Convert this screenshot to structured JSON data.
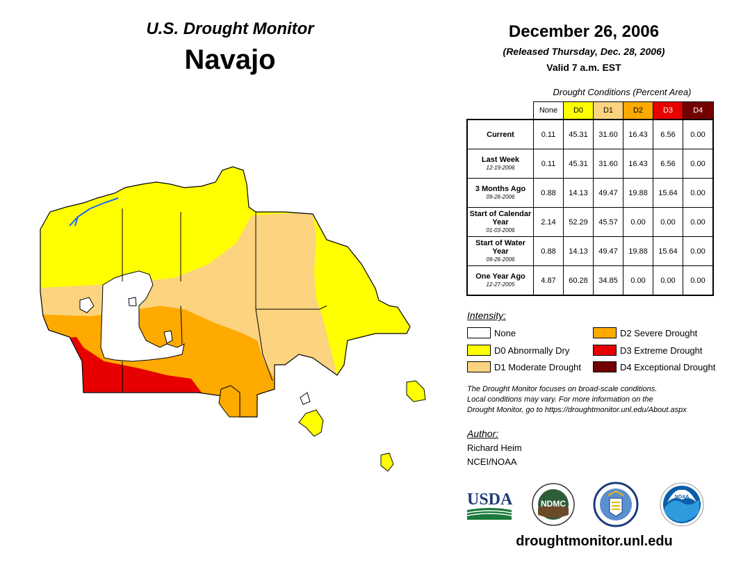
{
  "header": {
    "subtitle": "U.S. Drought Monitor",
    "region": "Navajo",
    "date": "December 26, 2006",
    "released": "(Released Thursday, Dec. 28, 2006)",
    "valid": "Valid 7 a.m. EST"
  },
  "table": {
    "title": "Drought Conditions (Percent Area)",
    "columns": [
      {
        "label": "None",
        "color": "#ffffff",
        "text_color": "#000000"
      },
      {
        "label": "D0",
        "color": "#ffff00",
        "text_color": "#000000"
      },
      {
        "label": "D1",
        "color": "#fcd37f",
        "text_color": "#000000"
      },
      {
        "label": "D2",
        "color": "#ffaa00",
        "text_color": "#000000"
      },
      {
        "label": "D3",
        "color": "#e60000",
        "text_color": "#ffffff"
      },
      {
        "label": "D4",
        "color": "#730000",
        "text_color": "#ffffff"
      }
    ],
    "rows": [
      {
        "label": "Current",
        "date": "",
        "values": [
          "0.11",
          "45.31",
          "31.60",
          "16.43",
          "6.56",
          "0.00"
        ]
      },
      {
        "label": "Last Week",
        "date": "12-19-2006",
        "values": [
          "0.11",
          "45.31",
          "31.60",
          "16.43",
          "6.56",
          "0.00"
        ]
      },
      {
        "label": "3 Months Ago",
        "date": "09-26-2006",
        "values": [
          "0.88",
          "14.13",
          "49.47",
          "19.88",
          "15.64",
          "0.00"
        ]
      },
      {
        "label": "Start of Calendar Year",
        "date": "01-03-2006",
        "values": [
          "2.14",
          "52.29",
          "45.57",
          "0.00",
          "0.00",
          "0.00"
        ]
      },
      {
        "label": "Start of Water Year",
        "date": "09-26-2006",
        "values": [
          "0.88",
          "14.13",
          "49.47",
          "19.88",
          "15.64",
          "0.00"
        ]
      },
      {
        "label": "One Year Ago",
        "date": "12-27-2005",
        "values": [
          "4.87",
          "60.28",
          "34.85",
          "0.00",
          "0.00",
          "0.00"
        ]
      }
    ]
  },
  "legend": {
    "title": "Intensity:",
    "items": [
      {
        "label": "None",
        "color": "#ffffff"
      },
      {
        "label": "D0 Abnormally Dry",
        "color": "#ffff00"
      },
      {
        "label": "D1 Moderate Drought",
        "color": "#fcd37f"
      },
      {
        "label": "D2 Severe Drought",
        "color": "#ffaa00"
      },
      {
        "label": "D3 Extreme Drought",
        "color": "#e60000"
      },
      {
        "label": "D4 Exceptional Drought",
        "color": "#730000"
      }
    ]
  },
  "notice": {
    "line1": "The Drought Monitor focuses on broad-scale conditions.",
    "line2": "Local conditions may vary. For more information on the",
    "line3": "Drought Monitor, go to https://droughtmonitor.unl.edu/About.aspx"
  },
  "author": {
    "label": "Author:",
    "name": "Richard Heim",
    "org": "NCEI/NOAA"
  },
  "logos": {
    "usda": "USDA",
    "ndmc": "NDMC",
    "noaa": "NOAA"
  },
  "website": "droughtmonitor.unl.edu"
}
